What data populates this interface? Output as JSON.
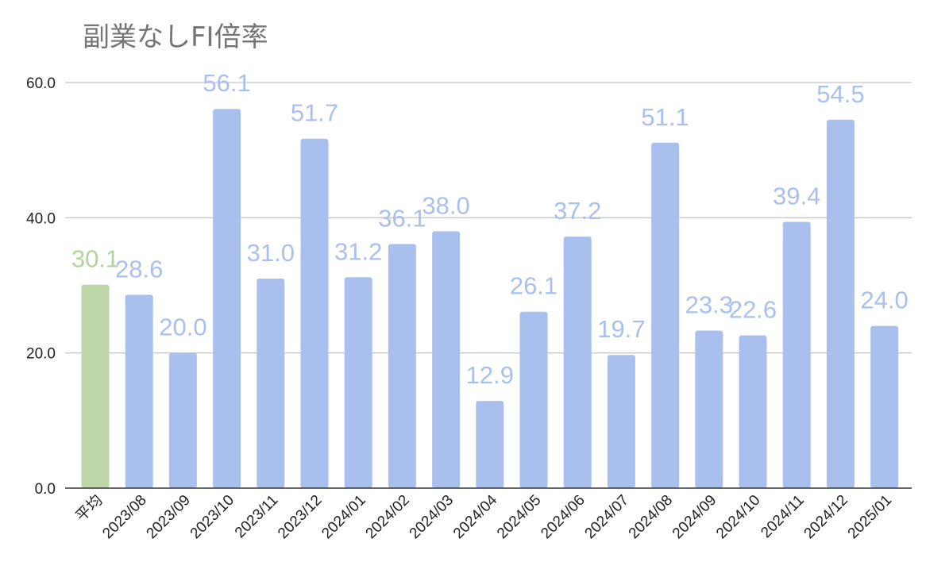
{
  "chart_data": {
    "type": "bar",
    "title": "副業なしFI倍率",
    "xlabel": "",
    "ylabel": "",
    "ylim": [
      0,
      60
    ],
    "y_ticks": [
      "0.0",
      "20.0",
      "40.0",
      "60.0"
    ],
    "grid": true,
    "legend": "none",
    "categories": [
      "平均",
      "2023/08",
      "2023/09",
      "2023/10",
      "2023/11",
      "2023/12",
      "2024/01",
      "2024/02",
      "2024/03",
      "2024/04",
      "2024/05",
      "2024/06",
      "2024/07",
      "2024/08",
      "2024/09",
      "2024/10",
      "2024/11",
      "2024/12",
      "2025/01"
    ],
    "values": [
      30.1,
      28.6,
      20.0,
      56.1,
      31.0,
      51.7,
      31.2,
      36.1,
      38.0,
      12.9,
      26.1,
      37.2,
      19.7,
      51.1,
      23.3,
      22.6,
      39.4,
      54.5,
      24.0
    ],
    "data_labels": [
      "30.1",
      "28.6",
      "20.0",
      "56.1",
      "31.0",
      "51.7",
      "31.2",
      "36.1",
      "38.0",
      "12.9",
      "26.1",
      "37.2",
      "19.7",
      "51.1",
      "23.3",
      "22.6",
      "39.4",
      "54.5",
      "24.0"
    ],
    "colors": {
      "average_bar": "#bdd7a9",
      "average_label": "#b2d3a0",
      "month_bar": "#a9c0ef",
      "month_label": "#a9c0ef"
    }
  }
}
